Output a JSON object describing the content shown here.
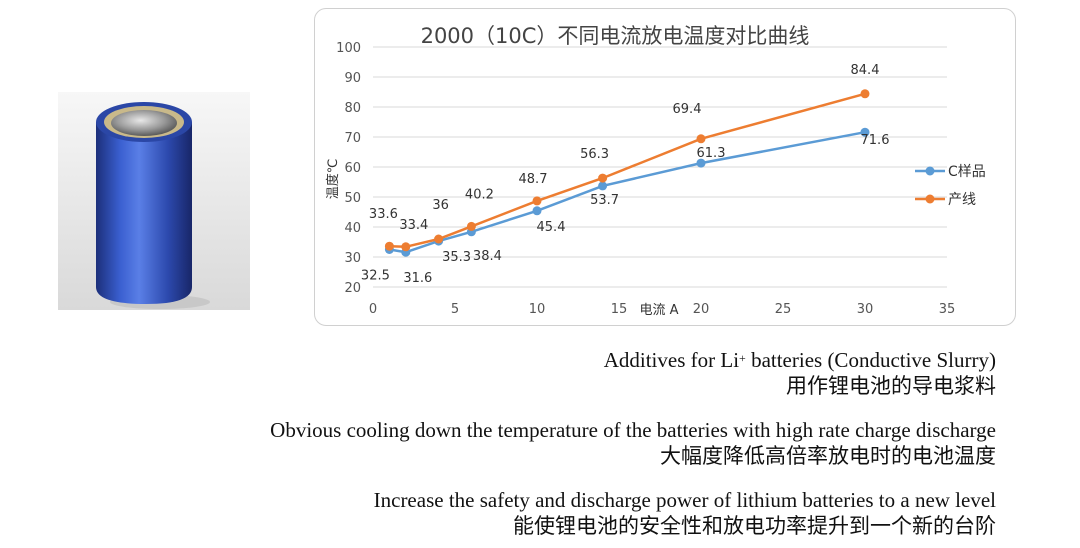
{
  "chart_data": {
    "type": "line",
    "title": "2000（10C）不同电流放电温度对比曲线",
    "xlabel": "电流 A",
    "ylabel": "温度℃",
    "xlim": [
      0,
      35
    ],
    "ylim": [
      20,
      100
    ],
    "xticks": [
      "0",
      "5",
      "10",
      "15",
      "20",
      "25",
      "30",
      "35"
    ],
    "yticks": [
      "20",
      "30",
      "40",
      "50",
      "60",
      "70",
      "80",
      "90",
      "100"
    ],
    "x": [
      1,
      2,
      4,
      6,
      10,
      14,
      20,
      30
    ],
    "series": [
      {
        "name": "C样品",
        "color": "#5b9bd5",
        "values": [
          32.5,
          31.6,
          35.3,
          38.4,
          45.4,
          53.7,
          61.3,
          71.6
        ],
        "labels": [
          "32.5",
          "31.6",
          "35.3",
          "38.4",
          "45.4",
          "53.7",
          "61.3",
          "71.6"
        ]
      },
      {
        "name": "产线",
        "color": "#ed7d31",
        "values": [
          33.6,
          33.4,
          36,
          40.2,
          48.7,
          56.3,
          69.4,
          84.4
        ],
        "labels": [
          "33.6",
          "33.4",
          "36",
          "40.2",
          "48.7",
          "56.3",
          "69.4",
          "84.4"
        ]
      }
    ],
    "legend": "right",
    "grid": "horizontal"
  },
  "captions": [
    {
      "en_pre": "Additives for Li",
      "en_sup": "+",
      "en_post": " batteries (Conductive Slurry)",
      "zh": "用作锂电池的导电浆料"
    },
    {
      "en": "Obvious cooling down the temperature of the batteries with high rate charge discharge",
      "zh": "大幅度降低高倍率放电时的电池温度"
    },
    {
      "en": "Increase the safety and discharge power of lithium batteries to a new level",
      "zh": "能使锂电池的安全性和放电功率提升到一个新的台阶"
    }
  ],
  "colors": {
    "battery_body": "#2f4fb0",
    "grid": "#d9d9d9",
    "axis_text": "#555555"
  }
}
